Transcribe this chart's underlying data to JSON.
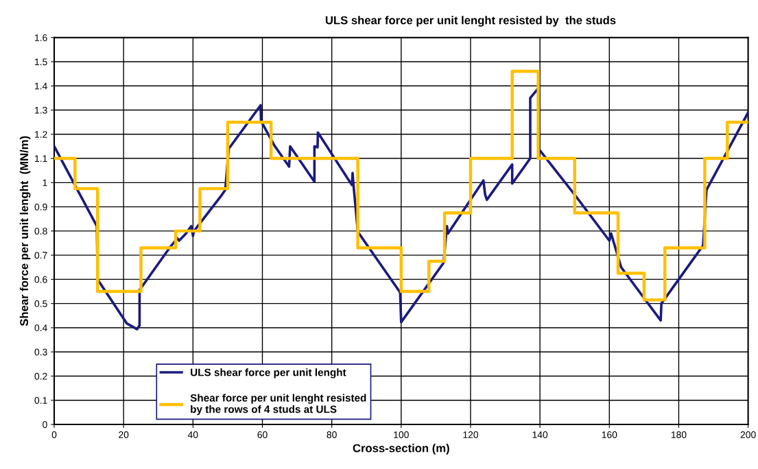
{
  "chart_data": {
    "type": "line",
    "title": "ULS shear force per unit lenght resisted by  the studs",
    "xlabel": "Cross-section (m)",
    "ylabel": "Shear force per unit lenght  (MN/m)",
    "xlim": [
      0,
      200
    ],
    "xticks": [
      0,
      20,
      40,
      60,
      80,
      100,
      120,
      140,
      160,
      180,
      200
    ],
    "ylim": [
      0,
      1.6
    ],
    "yticks": [
      0,
      0.1,
      0.2,
      0.3,
      0.4,
      0.5,
      0.6,
      0.7,
      0.8,
      0.9,
      1,
      1.1,
      1.2,
      1.3,
      1.4,
      1.5,
      1.6
    ],
    "grid": true,
    "legend": "bottom left",
    "marker": "none",
    "line_style": "solid",
    "series": [
      {
        "name": "ULS shear force per unit lenght",
        "color": "#1a1a7e",
        "x": [
          0,
          12.3,
          12.5,
          20.9,
          23.9,
          24.6,
          24.6,
          33.5,
          35.5,
          36,
          38,
          39.5,
          40,
          40.3,
          48,
          49.3,
          50.3,
          59.5,
          59.6,
          63.4,
          67.7,
          68,
          75,
          75,
          75.9,
          76,
          85.8,
          86,
          86.2,
          87.5,
          99.7,
          100,
          112.2,
          113.2,
          113.5,
          123.7,
          124.2,
          124.7,
          132,
          132,
          137.2,
          137.2,
          139.5,
          139.6,
          150,
          160,
          160.5,
          163.4,
          174.8,
          175,
          176,
          180,
          187,
          188,
          200
        ],
        "values": [
          1.15,
          0.82,
          0.6,
          0.418,
          0.394,
          0.41,
          0.556,
          0.735,
          0.77,
          0.76,
          0.79,
          0.82,
          0.78,
          0.8,
          0.943,
          0.97,
          1.14,
          1.32,
          1.255,
          1.155,
          1.066,
          1.15,
          1.004,
          1.15,
          1.146,
          1.207,
          0.99,
          1.04,
          1.0,
          0.797,
          0.546,
          0.423,
          0.668,
          0.82,
          0.79,
          1.009,
          0.95,
          0.929,
          1.075,
          0.996,
          1.1,
          1.35,
          1.39,
          1.14,
          0.95,
          0.76,
          0.79,
          0.65,
          0.43,
          0.5,
          0.52,
          0.6,
          0.74,
          0.97,
          1.29
        ]
      },
      {
        "name": "Shear force per unit lenght resisted\nby the rows of 4 studs at ULS",
        "type": "step",
        "color": "#ffc000",
        "x": [
          0,
          6,
          12.5,
          25,
          35,
          42,
          50,
          62.5,
          87.5,
          100,
          108,
          112.5,
          120,
          132,
          139.5,
          150,
          162.5,
          170,
          176,
          187.5,
          194,
          200
        ],
        "values": [
          1.1,
          0.975,
          0.55,
          0.73,
          0.8,
          0.975,
          1.25,
          1.1,
          0.73,
          0.55,
          0.675,
          0.875,
          1.1,
          1.46,
          1.1,
          0.875,
          0.625,
          0.515,
          0.73,
          1.1,
          1.25,
          1.25
        ]
      }
    ]
  }
}
